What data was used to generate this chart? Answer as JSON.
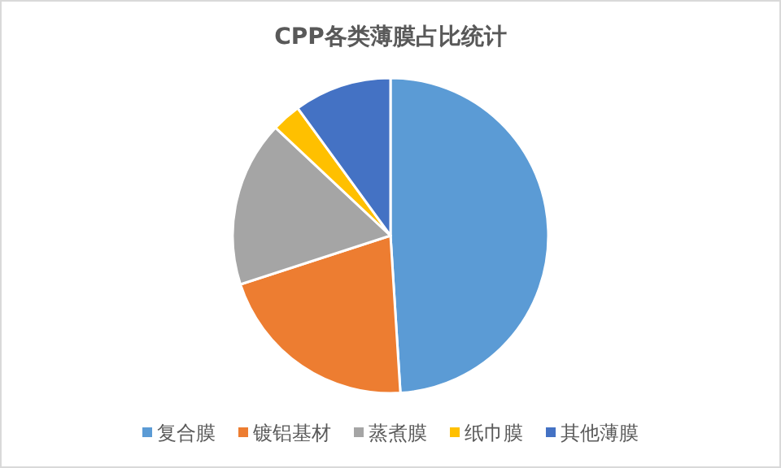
{
  "chart_data": {
    "type": "pie",
    "title": "CPP各类薄膜占比统计",
    "categories": [
      "复合膜",
      "镀铝基材",
      "蒸煮膜",
      "纸巾膜",
      "其他薄膜"
    ],
    "values": [
      49,
      21,
      17,
      3,
      10
    ],
    "colors": [
      "#5b9bd5",
      "#ed7d31",
      "#a5a5a5",
      "#ffc000",
      "#4472c4"
    ],
    "legend": "bottom"
  }
}
